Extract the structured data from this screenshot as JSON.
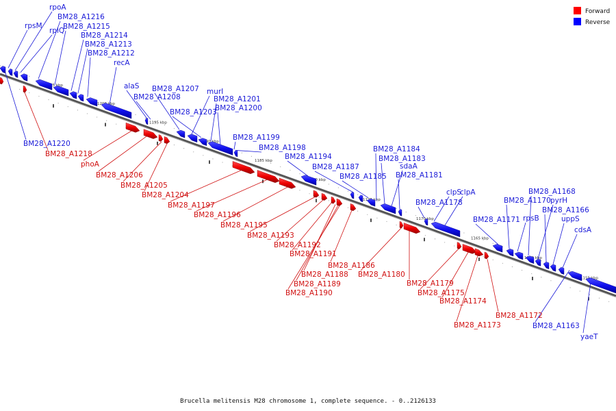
{
  "caption": "Brucella melitensis M28 chromosome 1, complete sequence. - 0..2126133",
  "legend": {
    "items": [
      {
        "name": "Forward",
        "color": "#ff0000"
      },
      {
        "name": "Reverse",
        "color": "#0000ff"
      }
    ]
  },
  "colors": {
    "forward": "#ee0000",
    "reverse": "#1010ee",
    "axis": "#777777"
  },
  "ticks": [
    "1205 kbp",
    "1200 kbp",
    "1195 kbp",
    "1190 kbp",
    "1185 kbp",
    "1180 kbp",
    "1175 kbp",
    "1170 kbp",
    "1165 kbp",
    "1160 kbp",
    "1155 kbp"
  ],
  "reverse_labels": [
    "rpsM",
    "rpoA",
    "rplQ",
    "BM28_A1216",
    "BM28_A1215",
    "BM28_A1214",
    "BM28_A1213",
    "BM28_A1212",
    "recA",
    "alaS",
    "BM28_A1208",
    "BM28_A1207",
    "murI",
    "BM28_A1203",
    "BM28_A1201",
    "BM28_A1200",
    "BM28_A1199",
    "BM28_A1198",
    "BM28_A1194",
    "BM28_A1187",
    "BM28_A1185",
    "BM28_A1184",
    "BM28_A1183",
    "sdaA",
    "BM28_A1181",
    "BM28_A1178",
    "clpS",
    "clpA",
    "BM28_A1171",
    "BM28_A1170",
    "rpsB",
    "BM28_A1168",
    "pyrH",
    "BM28_A1166",
    "uppS",
    "cdsA",
    "BM28_A1220",
    "BM28_A1163",
    "yaeT"
  ],
  "forward_labels": [
    "BM28_A1218",
    "phoA",
    "BM28_A1206",
    "BM28_A1205",
    "BM28_A1204",
    "BM28_A1197",
    "BM28_A1196",
    "BM28_A1195",
    "BM28_A1193",
    "BM28_A1192",
    "BM28_A1191",
    "BM28_A1188",
    "BM28_A1189",
    "BM28_A1190",
    "BM28_A1186",
    "BM28_A1180",
    "BM28_A1179",
    "BM28_A1175",
    "BM28_A1174",
    "BM28_A1173",
    "BM28_A1172"
  ]
}
